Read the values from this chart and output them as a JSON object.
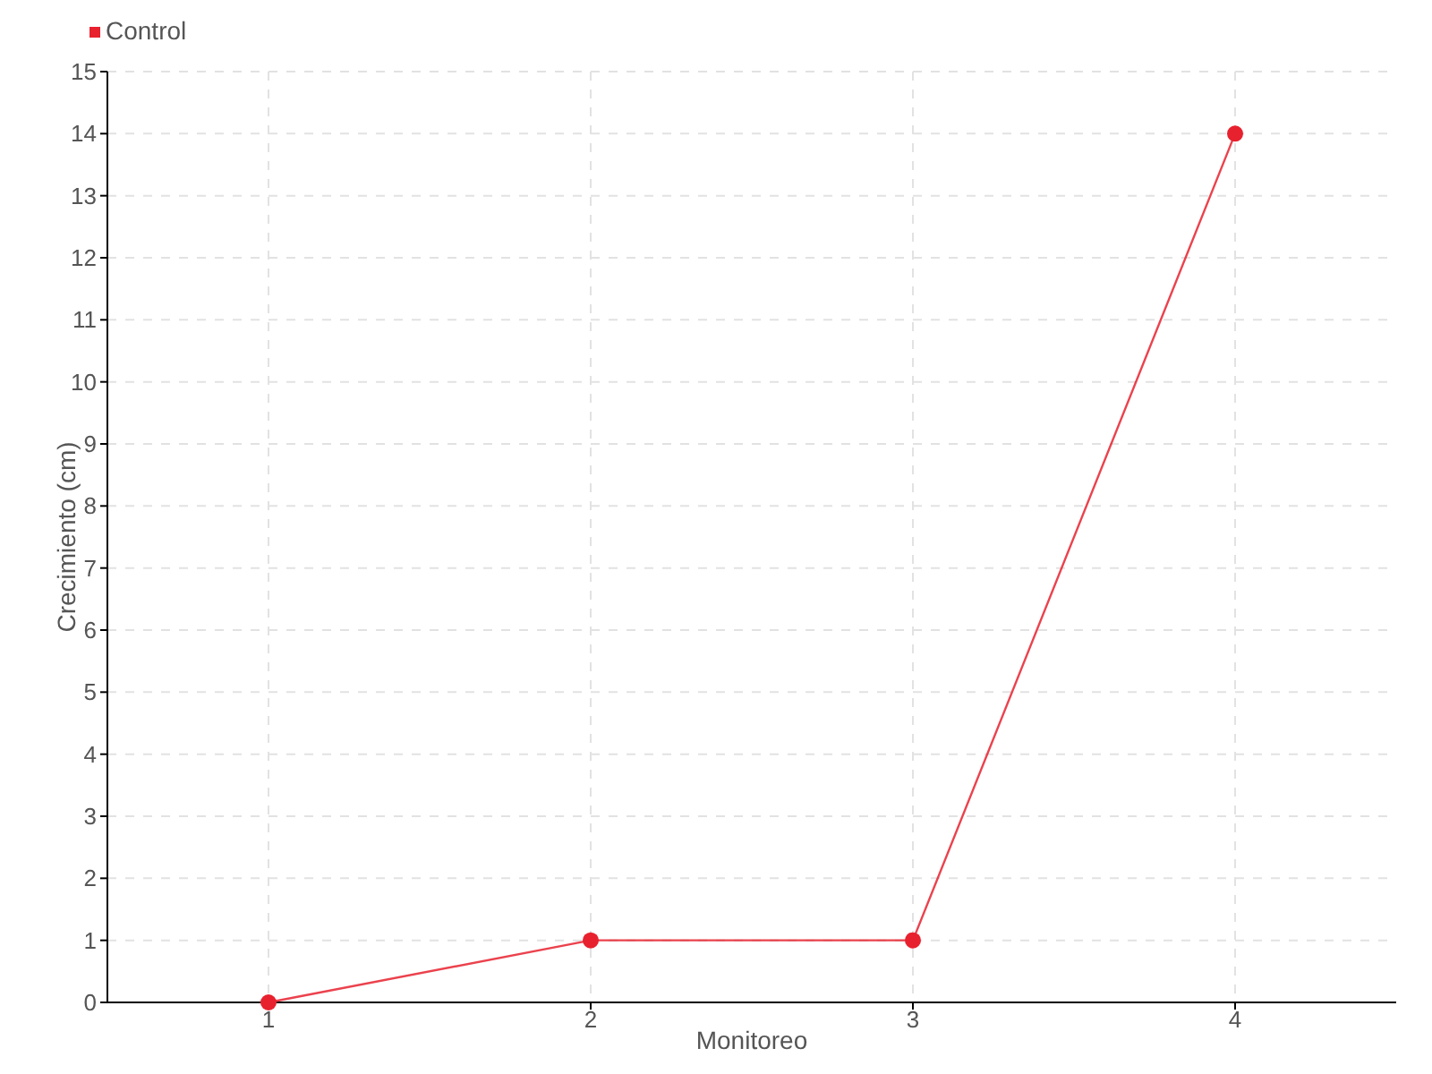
{
  "chart_data": {
    "type": "line",
    "xlabel": "Monitoreo",
    "ylabel": "Crecimiento (cm)",
    "categories": [
      "1",
      "2",
      "3",
      "4"
    ],
    "series": [
      {
        "name": "Control",
        "color": "#e8212e",
        "values": [
          0,
          1,
          1,
          14
        ]
      }
    ],
    "ylim": [
      0,
      15
    ],
    "yticks": [
      0,
      1,
      2,
      3,
      4,
      5,
      6,
      7,
      8,
      9,
      10,
      11,
      12,
      13,
      14,
      15
    ],
    "grid": true,
    "legend": "top left",
    "marker": "circle",
    "line_style": "solid"
  }
}
